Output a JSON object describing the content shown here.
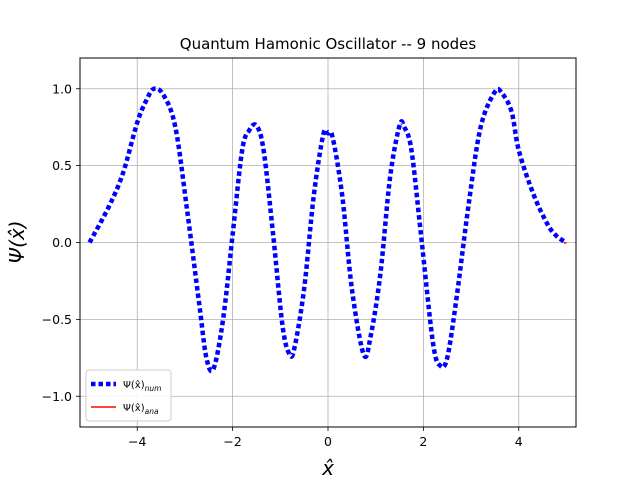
{
  "chart_data": {
    "type": "line",
    "title": "Quantum Hamonic Oscillator -- 9 nodes",
    "xlabel": "x̂",
    "ylabel": "Ψ(x̂)",
    "xlim": [
      -5.2,
      5.2
    ],
    "ylim": [
      -1.2,
      1.2
    ],
    "xticks": [
      -4,
      -2,
      0,
      2,
      4
    ],
    "yticks": [
      -1.0,
      -0.5,
      0.0,
      0.5,
      1.0
    ],
    "xtick_labels": [
      "−4",
      "−2",
      "0",
      "2",
      "4"
    ],
    "ytick_labels": [
      "−1.0",
      "−0.5",
      "0.0",
      "0.5",
      "1.0"
    ],
    "grid": true,
    "legend_position": "lower-left",
    "series": [
      {
        "name": "Ψ(x̂)_num",
        "color": "#0000ff",
        "style": "dotted",
        "x": [
          -5.0,
          -4.6,
          -4.3,
          -4.0,
          -3.8,
          -3.65,
          -3.45,
          -3.2,
          -2.95,
          -2.7,
          -2.55,
          -2.4,
          -2.2,
          -2.0,
          -1.8,
          -1.65,
          -1.5,
          -1.35,
          -1.15,
          -0.95,
          -0.8,
          -0.7,
          -0.5,
          -0.3,
          -0.1,
          0.0,
          0.1,
          0.3,
          0.5,
          0.75,
          0.9,
          1.1,
          1.3,
          1.5,
          1.6,
          1.75,
          1.95,
          2.2,
          2.35,
          2.5,
          2.7,
          2.95,
          3.2,
          3.5,
          3.65,
          3.85,
          4.0,
          4.3,
          4.6,
          4.8,
          5.0
        ],
        "y": [
          0.0,
          0.23,
          0.45,
          0.78,
          0.93,
          1.0,
          0.96,
          0.75,
          0.2,
          -0.4,
          -0.75,
          -0.82,
          -0.5,
          0.05,
          0.6,
          0.73,
          0.76,
          0.6,
          0.05,
          -0.55,
          -0.73,
          -0.68,
          -0.3,
          0.3,
          0.7,
          0.71,
          0.68,
          0.3,
          -0.3,
          -0.73,
          -0.6,
          -0.2,
          0.42,
          0.76,
          0.75,
          0.6,
          0.05,
          -0.65,
          -0.8,
          -0.75,
          -0.35,
          0.25,
          0.75,
          0.98,
          0.97,
          0.85,
          0.6,
          0.32,
          0.12,
          0.04,
          0.0
        ]
      },
      {
        "name": "Ψ(x̂)_ana",
        "color": "#ff0000",
        "style": "solid",
        "x": [
          4.95,
          5.0
        ],
        "y": [
          -0.005,
          0.0
        ]
      }
    ],
    "legend": [
      {
        "label": "Ψ(x̂)",
        "sub": "num",
        "color": "#0000ff",
        "style": "dotted"
      },
      {
        "label": "Ψ(x̂)",
        "sub": "ana",
        "color": "#ff0000",
        "style": "solid"
      }
    ]
  }
}
